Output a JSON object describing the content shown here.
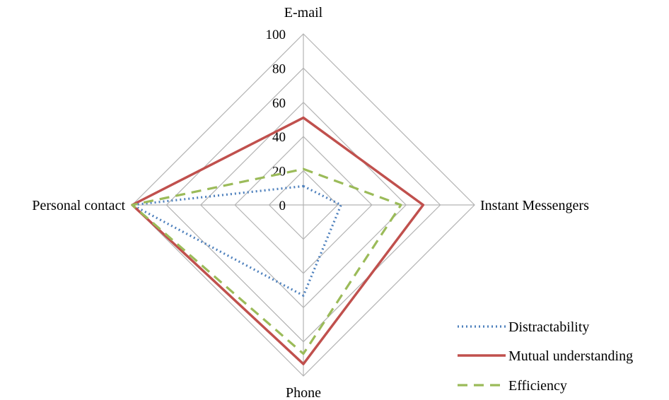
{
  "chart_data": {
    "type": "radar",
    "title": "",
    "axes": [
      "E-mail",
      "Instant Messengers",
      "Phone",
      "Personal contact"
    ],
    "r_ticks": [
      "0",
      "20",
      "40",
      "60",
      "80",
      "100"
    ],
    "r_range": [
      0,
      100
    ],
    "grid": true,
    "legend_position": "bottom-right",
    "series": [
      {
        "name": "Distractability",
        "values": [
          11,
          22,
          53,
          100
        ],
        "color": "#4f81bd",
        "dash": "dotted"
      },
      {
        "name": "Mutual understanding",
        "values": [
          51,
          70,
          93,
          100
        ],
        "color": "#c0504d",
        "dash": "solid"
      },
      {
        "name": "Efficiency",
        "values": [
          21,
          57,
          87,
          100
        ],
        "color": "#9bbb59",
        "dash": "dashed"
      }
    ]
  }
}
